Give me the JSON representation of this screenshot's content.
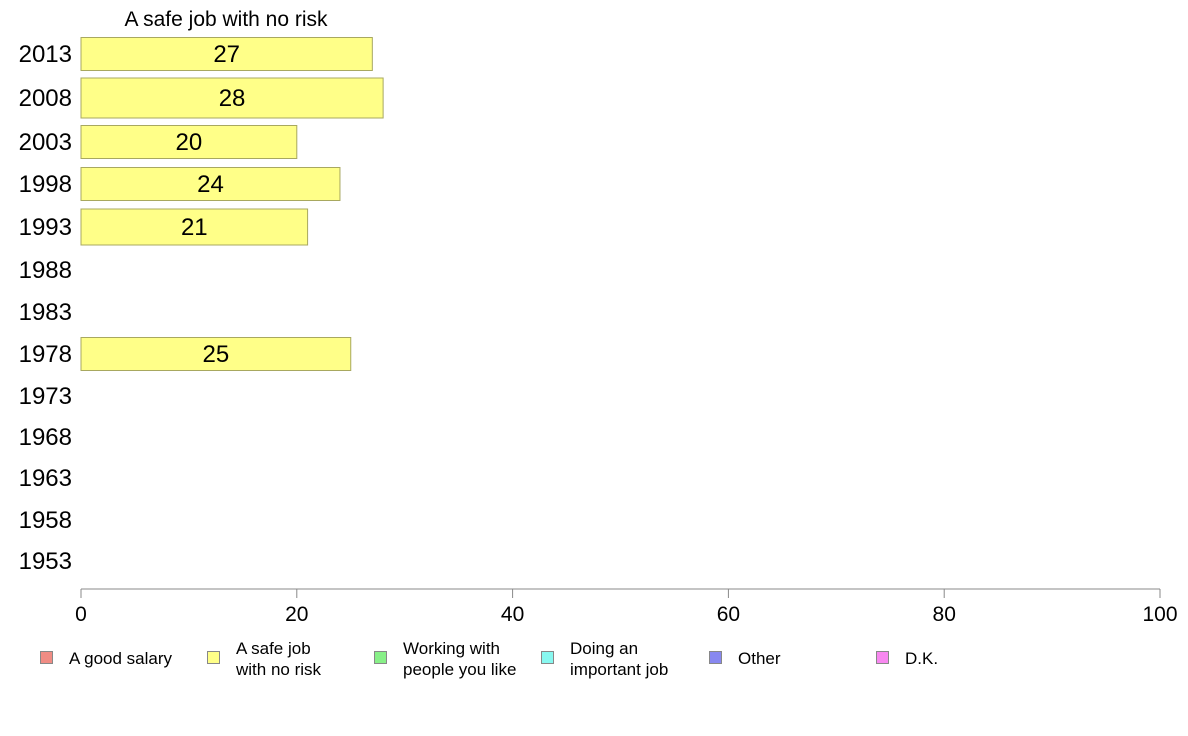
{
  "chart_data": {
    "type": "bar",
    "orientation": "horizontal",
    "title": "A safe job with no risk",
    "categories": [
      "2013",
      "2008",
      "2003",
      "1998",
      "1993",
      "1988",
      "1983",
      "1978",
      "1973",
      "1968",
      "1963",
      "1958",
      "1953"
    ],
    "series": [
      {
        "name": "A safe job with no risk",
        "color": "#ffff88",
        "values": [
          27,
          28,
          20,
          24,
          21,
          null,
          null,
          25,
          null,
          null,
          null,
          null,
          null
        ]
      }
    ],
    "xlim": [
      0,
      100
    ],
    "xticks": [
      0,
      20,
      40,
      60,
      80,
      100
    ],
    "grid": false,
    "legend_position": "bottom"
  },
  "legend": {
    "items": [
      {
        "label": "A good salary",
        "color": "#f08c84"
      },
      {
        "label": "A safe job\nwith no risk",
        "color": "#ffff88"
      },
      {
        "label": "Working with\npeople you like",
        "color": "#88f088"
      },
      {
        "label": "Doing an\nimportant job",
        "color": "#88f8f0"
      },
      {
        "label": "Other",
        "color": "#8888f0"
      },
      {
        "label": "D.K.",
        "color": "#f888f0"
      }
    ]
  }
}
